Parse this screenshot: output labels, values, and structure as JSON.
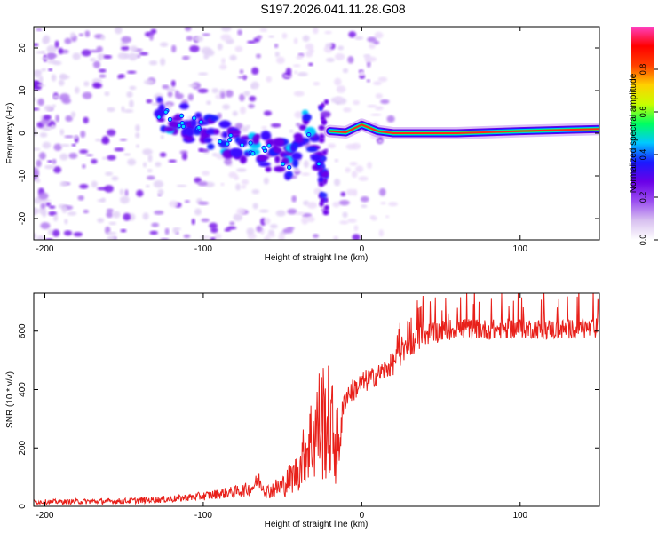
{
  "figure_title": "S197.2026.041.11.28.G08",
  "chart_data": [
    {
      "type": "heatmap",
      "title": "",
      "xlabel": "Height of straight line (km)",
      "ylabel": "Frequency (Hz)",
      "xlim": [
        -207,
        150
      ],
      "ylim": [
        -25,
        25
      ],
      "xticks": [
        -200,
        -100,
        0,
        100
      ],
      "yticks": [
        -20,
        -10,
        0,
        10,
        20
      ],
      "colorbar": {
        "label": "Normalized spectral amplitude",
        "range": [
          0,
          1
        ],
        "ticks": [
          "0.0",
          "0.2",
          "0.4",
          "0.6",
          "0.8"
        ],
        "tick_values": [
          0.0,
          0.2,
          0.4,
          0.6,
          0.8
        ],
        "colormap": [
          "#ffffff",
          "#d8c0f0",
          "#9a4df0",
          "#6a00e8",
          "#1a1aff",
          "#00c8ff",
          "#00ff60",
          "#c8ff00",
          "#ffd000",
          "#ff4000",
          "#ff0000",
          "#ff40c0"
        ]
      },
      "features": {
        "scatter_region_km": [
          -207,
          -20
        ],
        "drift_track": [
          {
            "x": -130,
            "f": 4.5
          },
          {
            "x": -115,
            "f": 3
          },
          {
            "x": -100,
            "f": 1
          },
          {
            "x": -85,
            "f": -1.5
          },
          {
            "x": -70,
            "f": -3
          },
          {
            "x": -55,
            "f": -5
          },
          {
            "x": -45,
            "f": -7
          },
          {
            "x": -35,
            "f": 3
          },
          {
            "x": -25,
            "f": -8
          }
        ],
        "tone_track": [
          {
            "x": -20,
            "f": 0.5
          },
          {
            "x": -10,
            "f": 0.2
          },
          {
            "x": 0,
            "f": 2
          },
          {
            "x": 10,
            "f": 0.5
          },
          {
            "x": 20,
            "f": 0
          },
          {
            "x": 60,
            "f": 0
          },
          {
            "x": 100,
            "f": 0.5
          },
          {
            "x": 150,
            "f": 1
          }
        ]
      }
    },
    {
      "type": "line",
      "title": "",
      "xlabel": "Height of straight line (km)",
      "ylabel": "SNR (10 * v/v)",
      "xlim": [
        -207,
        150
      ],
      "ylim": [
        0,
        730
      ],
      "xticks": [
        -200,
        -100,
        0,
        100
      ],
      "yticks": [
        0,
        200,
        400,
        600
      ],
      "series": [
        {
          "name": "SNR",
          "color": "#e8201a",
          "x": [
            -207,
            -150,
            -120,
            -100,
            -80,
            -70,
            -65,
            -60,
            -50,
            -40,
            -35,
            -30,
            -25,
            -20,
            -15,
            -12,
            -10,
            -5,
            0,
            10,
            20,
            30,
            40,
            60,
            80,
            100,
            120,
            150
          ],
          "baseline": [
            15,
            18,
            25,
            35,
            50,
            60,
            90,
            50,
            70,
            120,
            200,
            250,
            300,
            280,
            200,
            320,
            380,
            400,
            420,
            450,
            490,
            550,
            590,
            610,
            605,
            610,
            605,
            610
          ],
          "noise": [
            8,
            10,
            12,
            15,
            20,
            25,
            30,
            25,
            40,
            70,
            120,
            180,
            220,
            200,
            140,
            50,
            40,
            40,
            40,
            35,
            40,
            40,
            40,
            35,
            35,
            35,
            35,
            35
          ]
        }
      ]
    }
  ]
}
